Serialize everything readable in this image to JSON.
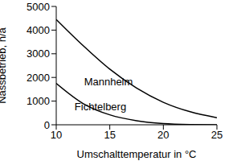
{
  "chart_data": {
    "type": "line",
    "x_label": "Umschalttemperatur in °C",
    "y_label": "Nassbetrieb, h/a",
    "x": [
      10,
      12.5,
      15,
      17.5,
      20,
      22.5,
      25
    ],
    "series": [
      {
        "name": "Mannheim",
        "color": "#000000",
        "values": [
          4450,
          3350,
          2350,
          1550,
          950,
          550,
          300
        ]
      },
      {
        "name": "Fichtelberg",
        "color": "#000000",
        "values": [
          1750,
          900,
          420,
          170,
          50,
          10,
          0
        ]
      }
    ],
    "xlim": [
      10,
      25
    ],
    "ylim": [
      0,
      5000
    ],
    "xticks": [
      10,
      15,
      20,
      25
    ],
    "yticks": [
      0,
      1000,
      2000,
      3000,
      4000,
      5000
    ],
    "grid": false,
    "legend": "none"
  }
}
